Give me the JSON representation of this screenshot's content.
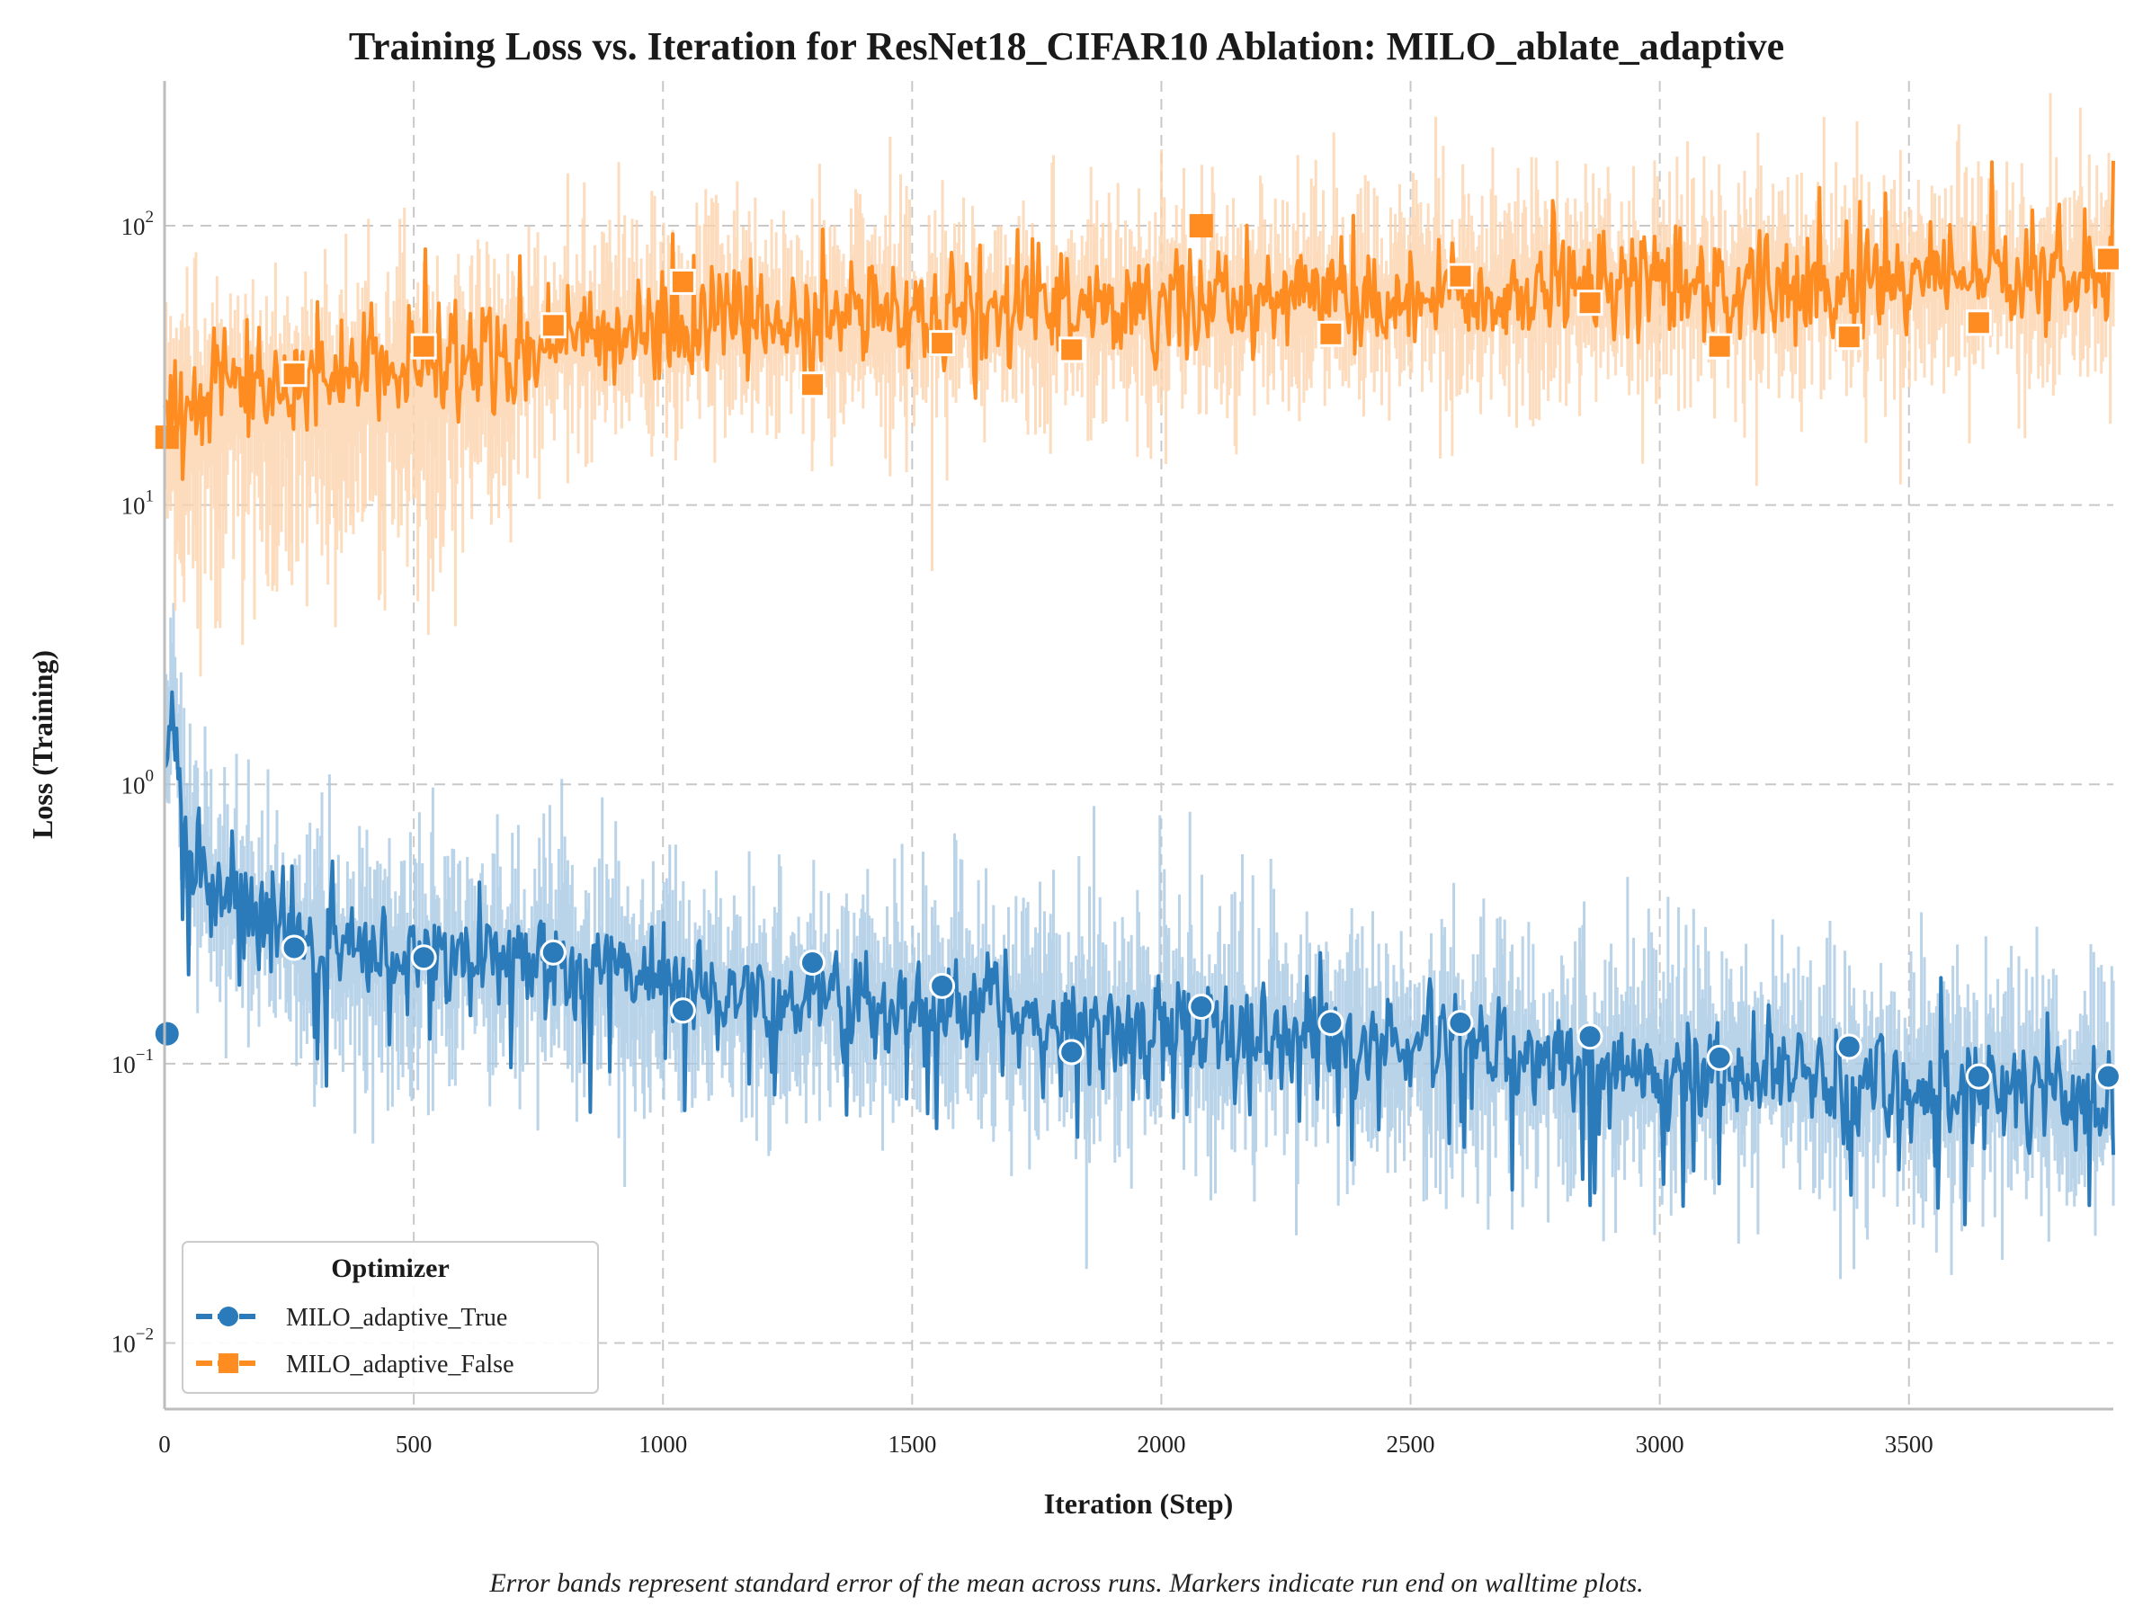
{
  "chart_data": {
    "type": "line",
    "title": "Training Loss vs. Iteration for ResNet18_CIFAR10 Ablation: MILO_ablate_adaptive",
    "xlabel": "Iteration (Step)",
    "ylabel": "Loss (Training)",
    "x_scale": "linear",
    "y_scale": "log",
    "xlim": [
      0,
      3910
    ],
    "ylim": [
      0.0058,
      330
    ],
    "x_ticks": [
      "0",
      "500",
      "1000",
      "1500",
      "2000",
      "2500",
      "3000",
      "3500"
    ],
    "x_tick_values": [
      0,
      500,
      1000,
      1500,
      2000,
      2500,
      3000,
      3500
    ],
    "y_tick_values": [
      0.01,
      0.1,
      1,
      10,
      100
    ],
    "y_ticks": [
      {
        "base": "10",
        "exp": "−2"
      },
      {
        "base": "10",
        "exp": "−1"
      },
      {
        "base": "10",
        "exp": "0"
      },
      {
        "base": "10",
        "exp": "1"
      },
      {
        "base": "10",
        "exp": "2"
      }
    ],
    "grid": true,
    "legend": {
      "title": "Optimizer",
      "placement": "lower-left"
    },
    "series": [
      {
        "name": "MILO_adaptive_True",
        "color": "#2b7bba",
        "band_color": "#a8c8e4",
        "marker": "circle",
        "trend_x": [
          0,
          10,
          40,
          100,
          200,
          300,
          500,
          800,
          1000,
          1300,
          1560,
          1820,
          2080,
          2340,
          2600,
          2860,
          3120,
          3380,
          3640,
          3910
        ],
        "trend_y": [
          0.12,
          2.2,
          0.7,
          0.45,
          0.32,
          0.27,
          0.24,
          0.22,
          0.19,
          0.17,
          0.16,
          0.14,
          0.13,
          0.12,
          0.11,
          0.1,
          0.095,
          0.085,
          0.08,
          0.075
        ],
        "marker_x": [
          5,
          260,
          520,
          780,
          1040,
          1300,
          1560,
          1820,
          2080,
          2340,
          2600,
          2860,
          3120,
          3380,
          3640,
          3900
        ],
        "marker_y": [
          0.128,
          0.26,
          0.24,
          0.25,
          0.155,
          0.23,
          0.19,
          0.11,
          0.16,
          0.14,
          0.14,
          0.125,
          0.105,
          0.115,
          0.09,
          0.09
        ]
      },
      {
        "name": "MILO_adaptive_False",
        "color": "#ff8c21",
        "band_color": "#fdd3ae",
        "marker": "square",
        "trend_x": [
          0,
          100,
          300,
          500,
          800,
          1000,
          1300,
          1560,
          1820,
          2080,
          2340,
          2600,
          2860,
          3120,
          3380,
          3640,
          3910
        ],
        "trend_y": [
          20,
          25,
          28,
          32,
          38,
          42,
          45,
          47,
          50,
          52,
          55,
          57,
          58,
          60,
          62,
          65,
          68
        ],
        "marker_x": [
          5,
          260,
          520,
          780,
          1040,
          1300,
          1560,
          1820,
          2080,
          2340,
          2600,
          2860,
          3120,
          3380,
          3640,
          3900
        ],
        "marker_y": [
          17.5,
          29.5,
          37,
          44,
          63,
          27,
          38,
          36,
          100,
          41,
          66,
          53,
          37,
          40,
          45,
          76
        ]
      }
    ],
    "caption": "Error bands represent standard error of the mean across runs. Markers indicate run end on walltime plots."
  }
}
